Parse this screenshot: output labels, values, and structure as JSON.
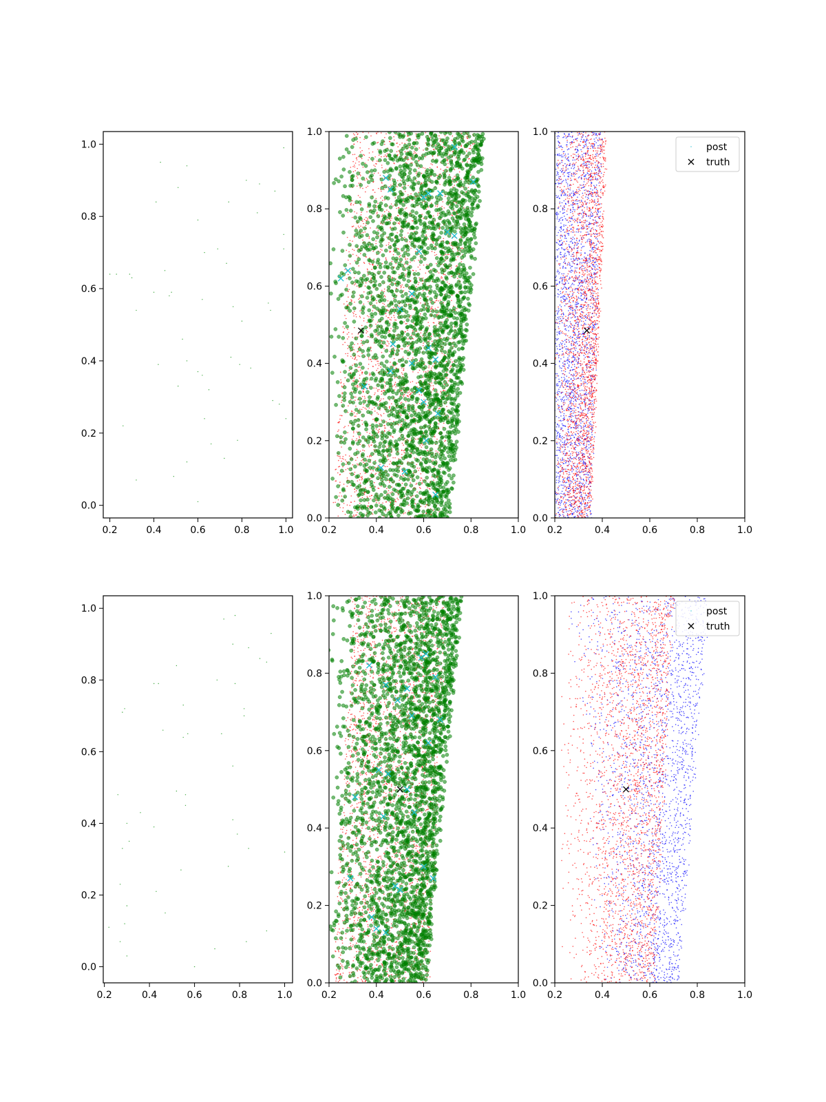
{
  "chart_data": [
    {
      "type": "scatter",
      "panel": "row1-col1",
      "xlim": [
        0.17,
        1.03
      ],
      "ylim": [
        -0.035,
        1.035
      ],
      "xticks": [
        "0.2",
        "0.4",
        "0.6",
        "0.8",
        "1.0"
      ],
      "yticks": [
        "0.0",
        "0.2",
        "0.4",
        "0.6",
        "0.8",
        "1.0"
      ],
      "grid": false,
      "series": [
        {
          "color": "#2ca02c",
          "marker": "dot-tiny",
          "x": [
            0.43,
            0.55,
            0.51,
            0.6,
            0.41,
            0.74,
            0.82,
            0.88,
            0.95,
            0.99,
            0.87,
            0.63,
            0.69,
            0.73,
            0.45,
            0.3,
            0.29,
            0.23,
            0.2,
            0.4,
            0.47,
            0.48,
            0.62,
            0.76,
            0.8,
            0.93,
            0.92,
            0.99,
            0.32,
            0.53,
            0.55,
            0.42,
            0.6,
            0.62,
            0.75,
            0.79,
            0.84,
            0.65,
            0.51,
            0.97,
            1.0,
            0.26,
            0.63,
            0.66,
            0.78,
            0.72,
            0.55,
            0.49,
            0.32,
            0.6,
            0.94,
            0.99
          ],
          "y": [
            0.95,
            0.94,
            0.88,
            0.79,
            0.84,
            0.84,
            0.9,
            0.89,
            0.87,
            0.99,
            0.81,
            0.7,
            0.71,
            0.67,
            0.65,
            0.63,
            0.64,
            0.64,
            0.64,
            0.59,
            0.58,
            0.59,
            0.57,
            0.55,
            0.51,
            0.54,
            0.56,
            0.75,
            0.54,
            0.46,
            0.4,
            0.39,
            0.37,
            0.36,
            0.41,
            0.39,
            0.38,
            0.32,
            0.33,
            0.28,
            0.24,
            0.22,
            0.24,
            0.17,
            0.18,
            0.13,
            0.12,
            0.08,
            0.07,
            0.01,
            0.29,
            0.71
          ]
        }
      ]
    },
    {
      "type": "scatter",
      "panel": "row1-col2",
      "xlim": [
        0.2,
        1.0
      ],
      "ylim": [
        0.0,
        1.0
      ],
      "xticks": [
        "0.2",
        "0.4",
        "0.6",
        "0.8",
        "1.0"
      ],
      "yticks": [
        "0.0",
        "0.2",
        "0.4",
        "0.6",
        "0.8",
        "1.0"
      ],
      "grid": false,
      "series": [
        {
          "color": "#ff0000",
          "marker": "dot-small",
          "count": 2600,
          "distribution": "band",
          "left_edge_bottom": 0.22,
          "left_edge_top": 0.3,
          "right_edge_bottom": 0.66,
          "right_edge_top": 0.82
        },
        {
          "color": "#008000",
          "marker": "circle",
          "count": 2800,
          "distribution": "band-dense-right",
          "left_edge_bottom": 0.2,
          "left_edge_top": 0.2,
          "right_edge_bottom": 0.71,
          "right_edge_top": 0.86
        },
        {
          "color": "#17becf",
          "marker": "x",
          "x": [
            0.25,
            0.28,
            0.44,
            0.46,
            0.58,
            0.6,
            0.62,
            0.73,
            0.7,
            0.73,
            0.81,
            0.46,
            0.55,
            0.62,
            0.65,
            0.47,
            0.35,
            0.58,
            0.6,
            0.66,
            0.42,
            0.52,
            0.61,
            0.65,
            0.55,
            0.5,
            0.67
          ],
          "y": [
            0.62,
            0.64,
            0.88,
            0.85,
            0.69,
            0.83,
            0.84,
            0.96,
            0.74,
            0.73,
            0.87,
            0.38,
            0.4,
            0.44,
            0.41,
            0.45,
            0.34,
            0.33,
            0.3,
            0.27,
            0.13,
            0.12,
            0.2,
            0.06,
            0.58,
            0.54,
            0.84
          ]
        },
        {
          "color": "#000000",
          "marker": "x",
          "x": [
            0.335
          ],
          "y": [
            0.485
          ]
        }
      ]
    },
    {
      "type": "scatter",
      "panel": "row1-col3",
      "xlim": [
        0.2,
        1.0
      ],
      "ylim": [
        0.0,
        1.0
      ],
      "xticks": [
        "0.2",
        "0.4",
        "0.6",
        "0.8",
        "1.0"
      ],
      "yticks": [
        "0.0",
        "0.2",
        "0.4",
        "0.6",
        "0.8",
        "1.0"
      ],
      "grid": false,
      "legend": {
        "position": "top-right",
        "entries": [
          "post",
          "truth"
        ]
      },
      "series": [
        {
          "name": "post",
          "color": "#17becf",
          "marker": "dot-tiny",
          "count": 0
        },
        {
          "color": "#0000ff",
          "marker": "dot-small",
          "count": 2200,
          "distribution": "band",
          "left_edge_bottom": 0.2,
          "left_edge_top": 0.2,
          "right_edge_bottom": 0.35,
          "right_edge_top": 0.4
        },
        {
          "color": "#ff0000",
          "marker": "dot-small",
          "count": 2400,
          "distribution": "band-dense-right",
          "left_edge_bottom": 0.2,
          "left_edge_top": 0.2,
          "right_edge_bottom": 0.35,
          "right_edge_top": 0.42
        },
        {
          "name": "truth",
          "color": "#000000",
          "marker": "x",
          "x": [
            0.335
          ],
          "y": [
            0.485
          ]
        }
      ]
    },
    {
      "type": "scatter",
      "panel": "row2-col1",
      "xlim": [
        0.195,
        1.035
      ],
      "ylim": [
        -0.045,
        1.035
      ],
      "xticks": [
        "0.2",
        "0.4",
        "0.6",
        "0.8",
        "1.0"
      ],
      "yticks": [
        "0.0",
        "0.2",
        "0.4",
        "0.6",
        "0.8",
        "1.0"
      ],
      "grid": false,
      "series": [
        {
          "color": "#2ca02c",
          "marker": "dot-tiny",
          "x": [
            0.73,
            0.78,
            0.94,
            0.77,
            0.84,
            0.89,
            0.92,
            0.52,
            0.42,
            0.44,
            0.7,
            0.78,
            0.29,
            0.28,
            0.55,
            0.82,
            0.82,
            0.46,
            0.57,
            0.55,
            0.72,
            0.77,
            0.52,
            0.56,
            0.26,
            0.36,
            0.56,
            0.3,
            0.42,
            0.77,
            0.79,
            0.28,
            0.31,
            0.84,
            0.54,
            0.75,
            0.27,
            0.43,
            0.3,
            0.47,
            0.22,
            0.29,
            0.92,
            0.27,
            0.83,
            0.3,
            0.69,
            0.6,
            1.0
          ],
          "y": [
            0.97,
            0.98,
            0.93,
            0.9,
            0.89,
            0.86,
            0.85,
            0.84,
            0.79,
            0.79,
            0.8,
            0.79,
            0.72,
            0.71,
            0.73,
            0.72,
            0.7,
            0.66,
            0.65,
            0.64,
            0.65,
            0.56,
            0.49,
            0.48,
            0.48,
            0.43,
            0.45,
            0.4,
            0.39,
            0.41,
            0.37,
            0.33,
            0.35,
            0.33,
            0.27,
            0.28,
            0.23,
            0.21,
            0.17,
            0.15,
            0.11,
            0.12,
            0.1,
            0.07,
            0.07,
            0.03,
            0.05,
            0.0,
            0.32
          ]
        }
      ]
    },
    {
      "type": "scatter",
      "panel": "row2-col2",
      "xlim": [
        0.2,
        1.0
      ],
      "ylim": [
        0.0,
        1.0
      ],
      "xticks": [
        "0.2",
        "0.4",
        "0.6",
        "0.8",
        "1.0"
      ],
      "yticks": [
        "0.0",
        "0.2",
        "0.4",
        "0.6",
        "0.8",
        "1.0"
      ],
      "grid": false,
      "series": [
        {
          "color": "#ff0000",
          "marker": "dot-small",
          "count": 2600,
          "distribution": "band",
          "left_edge_bottom": 0.22,
          "left_edge_top": 0.3,
          "right_edge_bottom": 0.62,
          "right_edge_top": 0.7
        },
        {
          "color": "#008000",
          "marker": "circle",
          "count": 2800,
          "distribution": "band-dense-right",
          "left_edge_bottom": 0.2,
          "left_edge_top": 0.2,
          "right_edge_bottom": 0.61,
          "right_edge_top": 0.76
        },
        {
          "color": "#17becf",
          "marker": "x",
          "x": [
            0.37,
            0.44,
            0.49,
            0.53,
            0.55,
            0.59,
            0.61,
            0.65,
            0.67,
            0.41,
            0.43,
            0.45,
            0.31,
            0.29,
            0.38,
            0.48,
            0.5,
            0.53,
            0.56,
            0.6,
            0.64,
            0.4,
            0.44,
            0.62
          ],
          "y": [
            0.82,
            0.77,
            0.73,
            0.76,
            0.69,
            0.84,
            0.85,
            0.79,
            0.68,
            0.55,
            0.43,
            0.54,
            0.48,
            0.27,
            0.17,
            0.25,
            0.24,
            0.5,
            0.44,
            0.3,
            0.27,
            0.14,
            0.13,
            0.62
          ]
        },
        {
          "color": "#000000",
          "marker": "x",
          "x": [
            0.5
          ],
          "y": [
            0.5
          ]
        }
      ]
    },
    {
      "type": "scatter",
      "panel": "row2-col3",
      "xlim": [
        0.2,
        1.0
      ],
      "ylim": [
        0.0,
        1.0
      ],
      "xticks": [
        "0.2",
        "0.4",
        "0.6",
        "0.8",
        "1.0"
      ],
      "yticks": [
        "0.0",
        "0.2",
        "0.4",
        "0.6",
        "0.8",
        "1.0"
      ],
      "grid": false,
      "legend": {
        "position": "top-right",
        "entries": [
          "post",
          "truth"
        ]
      },
      "series": [
        {
          "name": "post",
          "color": "#17becf",
          "marker": "dot-tiny",
          "count": 0
        },
        {
          "color": "#0000ff",
          "marker": "dot-small",
          "count": 2200,
          "distribution": "band-dense-right",
          "left_edge_bottom": 0.4,
          "left_edge_top": 0.25,
          "right_edge_bottom": 0.72,
          "right_edge_top": 0.85
        },
        {
          "color": "#ff0000",
          "marker": "dot-small",
          "count": 2400,
          "distribution": "band-dense-right",
          "left_edge_bottom": 0.22,
          "left_edge_top": 0.22,
          "right_edge_bottom": 0.62,
          "right_edge_top": 0.7
        },
        {
          "name": "truth",
          "color": "#000000",
          "marker": "x",
          "x": [
            0.5
          ],
          "y": [
            0.5
          ]
        }
      ]
    }
  ]
}
